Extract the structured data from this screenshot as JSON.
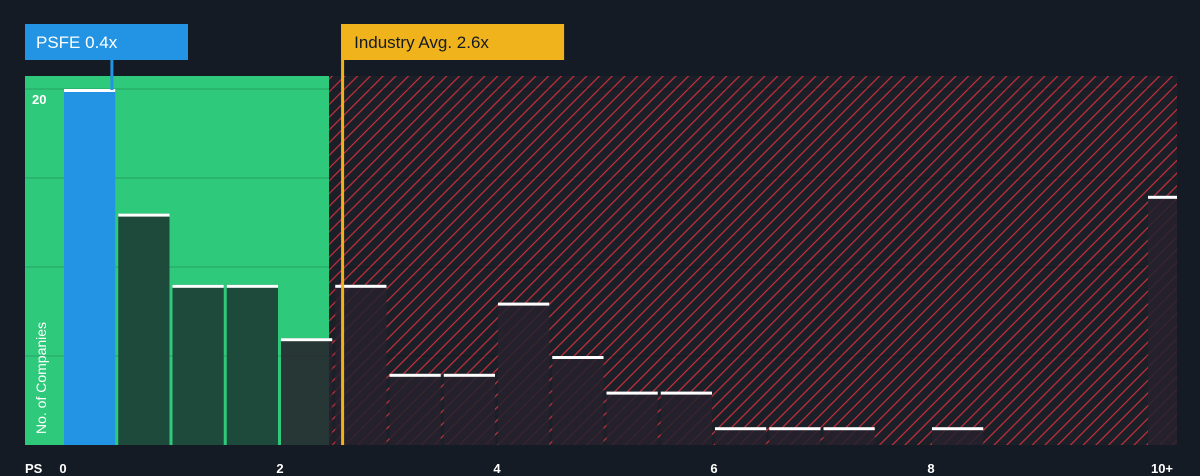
{
  "chart_data": {
    "type": "bar",
    "title": "",
    "xlabel": "PS",
    "ylabel": "No. of Companies",
    "x_ticks": [
      "0",
      "2",
      "4",
      "6",
      "8",
      "10+"
    ],
    "y_ticks": [
      "20"
    ],
    "ylim": [
      0,
      21
    ],
    "bin_width": 0.5,
    "x_max_label": "10+",
    "bins": [
      {
        "start": 0.0,
        "count": 20
      },
      {
        "start": 0.5,
        "count": 13
      },
      {
        "start": 1.0,
        "count": 9
      },
      {
        "start": 1.5,
        "count": 9
      },
      {
        "start": 2.0,
        "count": 6
      },
      {
        "start": 2.5,
        "count": 9
      },
      {
        "start": 3.0,
        "count": 4
      },
      {
        "start": 3.5,
        "count": 4
      },
      {
        "start": 4.0,
        "count": 8
      },
      {
        "start": 4.5,
        "count": 5
      },
      {
        "start": 5.0,
        "count": 3
      },
      {
        "start": 5.5,
        "count": 3
      },
      {
        "start": 6.0,
        "count": 1
      },
      {
        "start": 6.5,
        "count": 1
      },
      {
        "start": 7.0,
        "count": 1
      },
      {
        "start": 8.0,
        "count": 1
      },
      {
        "start": 10.0,
        "count": 14
      }
    ],
    "highlight": {
      "label": "PSFE 0.4x",
      "value": 0.4,
      "color": "#2394e3"
    },
    "industry_avg": {
      "label": "Industry Avg. 2.6x",
      "value": 2.6,
      "color": "#f0b31b"
    },
    "fair_zone_color": "#2ec97a",
    "overvalued_hatch_color": "#c9303c"
  }
}
